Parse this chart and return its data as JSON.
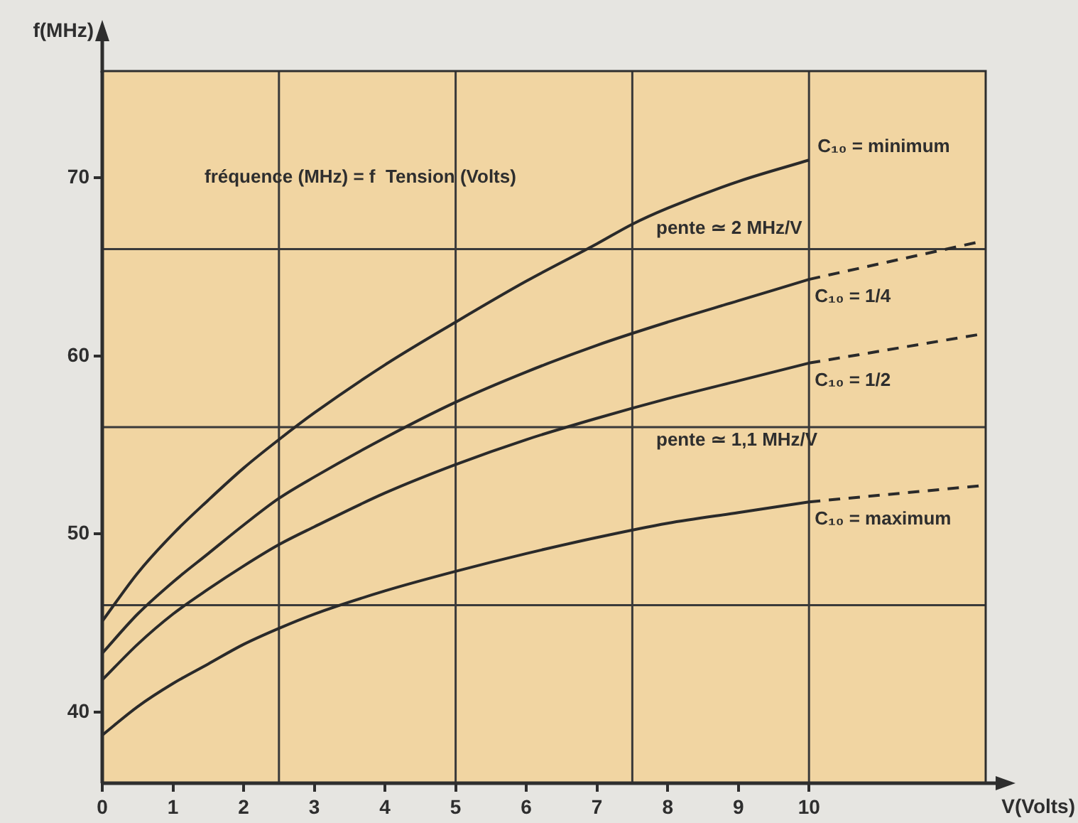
{
  "chart_data": {
    "type": "line",
    "xlabel": "V(Volts)",
    "ylabel": "f(MHz)",
    "annotations": [
      "fréquence (MHz) = f  Tension (Volts)",
      "pente ≃ 2 MHz/V",
      "pente ≃ 1,1 MHz/V"
    ],
    "series": [
      {
        "name": "C₁₀ = minimum",
        "color": "#2a2a2a",
        "x": [
          0,
          0.5,
          1,
          1.5,
          2,
          2.5,
          3,
          4,
          5,
          6,
          7,
          7.5,
          8,
          9,
          10
        ],
        "values": [
          45.1,
          47.8,
          50.0,
          51.9,
          53.7,
          55.3,
          56.8,
          59.5,
          61.9,
          64.2,
          66.3,
          67.4,
          68.3,
          69.8,
          71.0
        ]
      },
      {
        "name": "C₁₀ = 1/4",
        "color": "#2a2a2a",
        "x": [
          0,
          0.5,
          1,
          1.5,
          2,
          2.5,
          3,
          4,
          5,
          6,
          7,
          8,
          9,
          10
        ],
        "values": [
          43.3,
          45.5,
          47.3,
          48.9,
          50.5,
          52.0,
          53.2,
          55.4,
          57.4,
          59.1,
          60.6,
          61.9,
          63.1,
          64.3
        ]
      },
      {
        "color": "#2a2a2a",
        "line_style": "dashed",
        "x": [
          10,
          12.4
        ],
        "values": [
          64.3,
          66.4
        ]
      },
      {
        "name": "C₁₀ = 1/2",
        "color": "#2a2a2a",
        "x": [
          0,
          0.5,
          1,
          1.5,
          2,
          2.5,
          3,
          4,
          5,
          6,
          7,
          8,
          9,
          10
        ],
        "values": [
          41.8,
          43.8,
          45.5,
          46.9,
          48.2,
          49.4,
          50.4,
          52.3,
          53.9,
          55.3,
          56.5,
          57.6,
          58.6,
          59.6
        ]
      },
      {
        "color": "#2a2a2a",
        "line_style": "dashed",
        "x": [
          10,
          12.4
        ],
        "values": [
          59.6,
          61.2
        ]
      },
      {
        "name": "C₁₀ = maximum",
        "color": "#2a2a2a",
        "x": [
          0,
          0.5,
          1,
          1.5,
          2,
          2.5,
          3,
          4,
          5,
          6,
          7,
          8,
          9,
          10
        ],
        "values": [
          38.7,
          40.3,
          41.6,
          42.7,
          43.8,
          44.7,
          45.5,
          46.8,
          47.9,
          48.9,
          49.8,
          50.6,
          51.2,
          51.8
        ]
      },
      {
        "color": "#2a2a2a",
        "line_style": "dashed",
        "x": [
          10,
          12.4
        ],
        "values": [
          51.8,
          52.7
        ]
      }
    ],
    "xlim": [
      0,
      12.5
    ],
    "ylim": [
      36,
      76
    ],
    "xticks": [
      0,
      1,
      2,
      3,
      4,
      5,
      6,
      7,
      8,
      9,
      10
    ],
    "yticks": [
      40,
      50,
      60,
      70
    ],
    "ref_lines": [
      {
        "axis": "x",
        "value": 2.5,
        "color": "#3a3a3a"
      },
      {
        "axis": "x",
        "value": 5,
        "color": "#3a3a3a"
      },
      {
        "axis": "x",
        "value": 7.5,
        "color": "#3a3a3a"
      },
      {
        "axis": "x",
        "value": 10,
        "color": "#3a3a3a"
      },
      {
        "axis": "y",
        "value": 46,
        "color": "#3a3a3a"
      },
      {
        "axis": "y",
        "value": 56,
        "color": "#3a3a3a"
      },
      {
        "axis": "y",
        "value": 66,
        "color": "#3a3a3a"
      }
    ]
  }
}
